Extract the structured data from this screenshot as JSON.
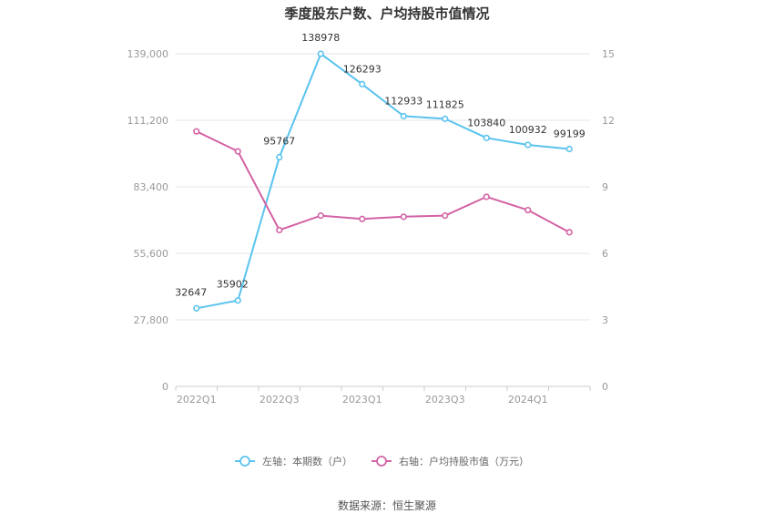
{
  "chart_data": {
    "type": "line",
    "title": "季度股东户数、户均持股市值情况",
    "x": [
      "2022Q1",
      "2022Q2",
      "2022Q3",
      "2022Q4",
      "2023Q1",
      "2023Q2",
      "2023Q3",
      "2023Q4",
      "2024Q1",
      "2024Q2"
    ],
    "x_tick_labels": [
      "2022Q1",
      "",
      "2022Q3",
      "",
      "2023Q1",
      "",
      "2023Q3",
      "",
      "2024Q1",
      ""
    ],
    "left_axis": {
      "ylim": [
        0,
        139000
      ],
      "ticks": [
        "0",
        "27,800",
        "55,600",
        "83,400",
        "111,200",
        "139,000"
      ]
    },
    "right_axis": {
      "ylim": [
        0,
        15
      ],
      "ticks": [
        "0",
        "3",
        "6",
        "9",
        "12",
        "15"
      ]
    },
    "grid": true,
    "legend_position": "bottom",
    "series": [
      {
        "name": "左轴：本期数（户）",
        "axis": "left",
        "color": "#5ac3ee",
        "values": [
          32647,
          35902,
          95767,
          138978,
          126293,
          112933,
          111825,
          103840,
          100932,
          99199
        ],
        "labels": [
          "32647",
          "35902",
          "95767",
          "138978",
          "126293",
          "112933",
          "111825",
          "103840",
          "100932",
          "99199"
        ]
      },
      {
        "name": "右轴：户均持股市值（万元）",
        "axis": "right",
        "color": "#d362a4",
        "values": [
          11.5,
          10.6,
          7.05,
          7.7,
          7.55,
          7.65,
          7.7,
          8.55,
          7.95,
          6.95
        ]
      }
    ],
    "source": "数据来源：恒生聚源"
  }
}
